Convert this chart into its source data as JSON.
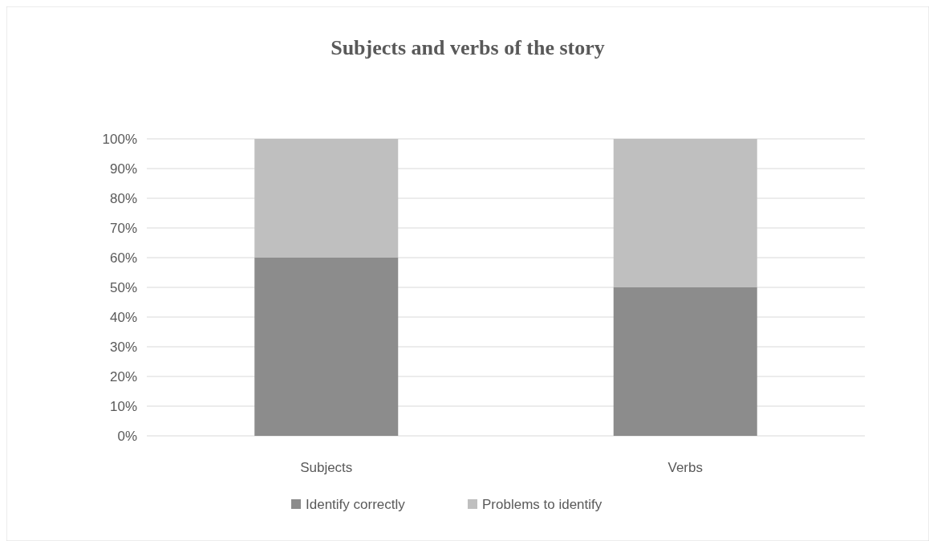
{
  "chart_data": {
    "type": "bar",
    "title": "Subjects and verbs of the story",
    "categories": [
      "Subjects",
      "Verbs"
    ],
    "stacked": true,
    "series": [
      {
        "name": "Identify correctly",
        "color": "#8c8c8c",
        "values": [
          60,
          50
        ]
      },
      {
        "name": "Problems to identify",
        "color": "#bfbfbf",
        "values": [
          40,
          50
        ]
      }
    ],
    "ylim": [
      0,
      100
    ],
    "yticks": [
      {
        "value": 0,
        "label": "0%"
      },
      {
        "value": 10,
        "label": "10%"
      },
      {
        "value": 20,
        "label": "20%"
      },
      {
        "value": 30,
        "label": "30%"
      },
      {
        "value": 40,
        "label": "40%"
      },
      {
        "value": 50,
        "label": "50%"
      },
      {
        "value": 60,
        "label": "60%"
      },
      {
        "value": 70,
        "label": "70%"
      },
      {
        "value": 80,
        "label": "80%"
      },
      {
        "value": 90,
        "label": "90%"
      },
      {
        "value": 100,
        "label": "100%"
      }
    ],
    "grid": "y",
    "legend": "bottom"
  }
}
